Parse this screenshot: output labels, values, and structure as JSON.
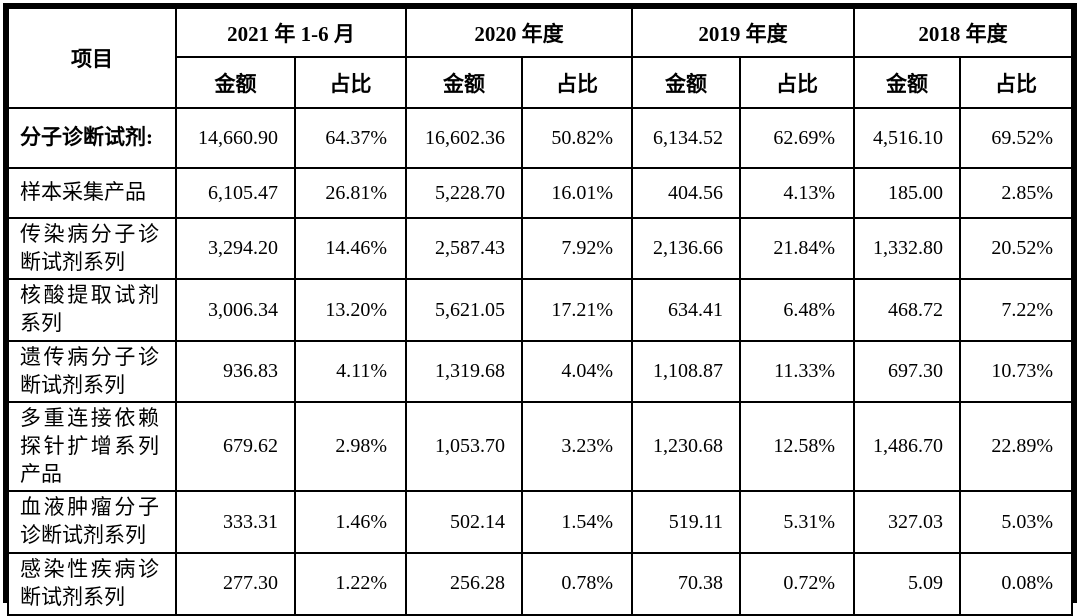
{
  "table": {
    "columns": {
      "item": "项目",
      "amount": "金额",
      "ratio": "占比"
    },
    "periods": [
      "2021 年 1-6 月",
      "2020 年度",
      "2019 年度",
      "2018 年度"
    ],
    "rows": [
      {
        "label": "分子诊断试剂:",
        "bold": true,
        "values": [
          "14,660.90",
          "64.37%",
          "16,602.36",
          "50.82%",
          "6,134.52",
          "62.69%",
          "4,516.10",
          "69.52%"
        ]
      },
      {
        "label": "样本采集产品",
        "bold": false,
        "values": [
          "6,105.47",
          "26.81%",
          "5,228.70",
          "16.01%",
          "404.56",
          "4.13%",
          "185.00",
          "2.85%"
        ]
      },
      {
        "label": "传染病分子诊断试剂系列",
        "bold": false,
        "values": [
          "3,294.20",
          "14.46%",
          "2,587.43",
          "7.92%",
          "2,136.66",
          "21.84%",
          "1,332.80",
          "20.52%"
        ]
      },
      {
        "label": "核酸提取试剂系列",
        "bold": false,
        "values": [
          "3,006.34",
          "13.20%",
          "5,621.05",
          "17.21%",
          "634.41",
          "6.48%",
          "468.72",
          "7.22%"
        ]
      },
      {
        "label": "遗传病分子诊断试剂系列",
        "bold": false,
        "values": [
          "936.83",
          "4.11%",
          "1,319.68",
          "4.04%",
          "1,108.87",
          "11.33%",
          "697.30",
          "10.73%"
        ]
      },
      {
        "label": "多重连接依赖探针扩增系列产品",
        "bold": false,
        "values": [
          "679.62",
          "2.98%",
          "1,053.70",
          "3.23%",
          "1,230.68",
          "12.58%",
          "1,486.70",
          "22.89%"
        ]
      },
      {
        "label": "血液肿瘤分子诊断试剂系列",
        "bold": false,
        "values": [
          "333.31",
          "1.46%",
          "502.14",
          "1.54%",
          "519.11",
          "5.31%",
          "327.03",
          "5.03%"
        ]
      },
      {
        "label": "感染性疾病诊断试剂系列",
        "bold": false,
        "values": [
          "277.30",
          "1.22%",
          "256.28",
          "0.78%",
          "70.38",
          "0.72%",
          "5.09",
          "0.08%"
        ]
      }
    ]
  }
}
